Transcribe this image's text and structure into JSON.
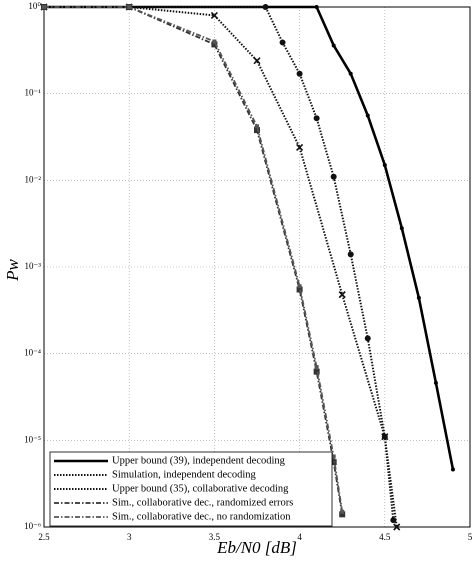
{
  "chart_data": {
    "type": "line",
    "xlabel": "Eb/N0 [dB]",
    "ylabel": "Pw",
    "xlim": [
      2.5,
      5
    ],
    "ylim": [
      1e-06,
      1
    ],
    "log_y": true,
    "grid": true,
    "legend": "lower left",
    "xticks": [
      2.5,
      3,
      3.5,
      4,
      4.5,
      5
    ],
    "yticks": [
      {
        "value": 1e-06,
        "label": "10⁻⁶"
      },
      {
        "value": 1e-05,
        "label": "10⁻⁵"
      },
      {
        "value": 0.0001,
        "label": "10⁻⁴"
      },
      {
        "value": 0.001,
        "label": "10⁻³"
      },
      {
        "value": 0.01,
        "label": "10⁻²"
      },
      {
        "value": 0.1,
        "label": "10⁻¹"
      },
      {
        "value": 1,
        "label": "10⁰"
      }
    ],
    "series": [
      {
        "name": "Upper bound (39), independent decoding",
        "color": "#000000",
        "style": "solid",
        "marker": "dot",
        "x": [
          2.5,
          3,
          4.1,
          4.2,
          4.3,
          4.4,
          4.5,
          4.6,
          4.7,
          4.8,
          4.9
        ],
        "values": [
          1,
          1,
          1,
          0.36,
          0.17,
          0.056,
          0.015,
          0.0028,
          0.00044,
          4.6e-05,
          4.6e-06
        ]
      },
      {
        "name": "Simulation, independent decoding",
        "color": "#111111",
        "style": "dotted",
        "marker": "cross",
        "x": [
          2.5,
          3,
          3.5,
          3.75,
          4,
          4.25,
          4.5,
          4.57
        ],
        "values": [
          1,
          1,
          0.8,
          0.24,
          0.024,
          0.00048,
          1.1e-05,
          1e-06
        ]
      },
      {
        "name": "Upper bound (35), collaborative decoding",
        "color": "#111111",
        "style": "dotted",
        "marker": "circle",
        "x": [
          2.5,
          3,
          3.8,
          3.9,
          4,
          4.1,
          4.2,
          4.3,
          4.4,
          4.5,
          4.55
        ],
        "values": [
          1,
          1,
          1,
          0.39,
          0.17,
          0.052,
          0.011,
          0.0014,
          0.00015,
          1.1e-05,
          1.2e-06
        ]
      },
      {
        "name": "Sim., collaborative dec., randomized errors",
        "color": "#333333",
        "style": "dashdot",
        "marker": "square",
        "x": [
          2.5,
          3,
          3.5,
          3.75,
          4,
          4.1,
          4.2,
          4.25
        ],
        "values": [
          1,
          1,
          0.37,
          0.038,
          0.00055,
          6.2e-05,
          5.6e-06,
          1.4e-06
        ]
      },
      {
        "name": "Sim., collaborative dec., no randomization",
        "color": "#555555",
        "style": "dashdot",
        "marker": "tick",
        "x": [
          2.5,
          3,
          3.5,
          3.75,
          4,
          4.1,
          4.2,
          4.25
        ],
        "values": [
          1,
          1,
          0.4,
          0.042,
          0.0006,
          7e-05,
          6.5e-06,
          1.5e-06
        ]
      }
    ]
  }
}
